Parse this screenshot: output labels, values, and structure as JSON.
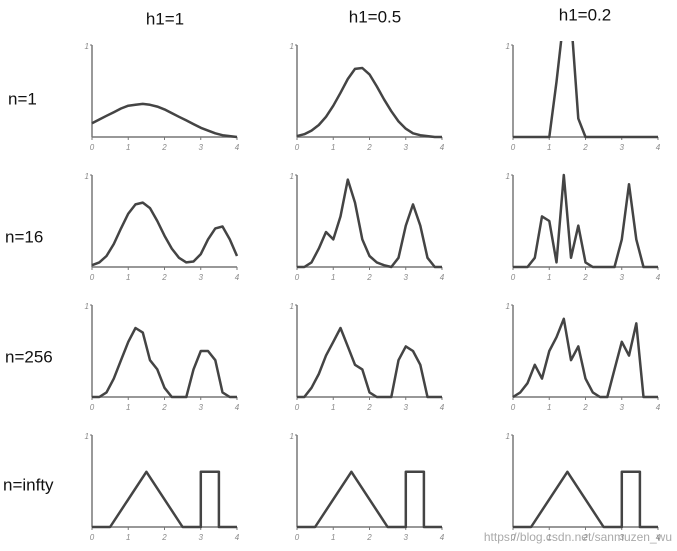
{
  "column_titles": [
    "h1=1",
    "h1=0.5",
    "h1=0.2"
  ],
  "row_labels": [
    "n=1",
    "n=16",
    "n=256",
    "n=infty"
  ],
  "watermark": "https://blog.csdn.net/sanmuzen_wu",
  "chart_data": [
    {
      "type": "line",
      "color": "#444444",
      "xlim": [
        0,
        4
      ],
      "xticks": [
        0,
        1,
        2,
        3,
        4
      ],
      "ylim": [
        0,
        1
      ],
      "yticks": [
        1
      ],
      "x": [
        0,
        0.2,
        0.4,
        0.6,
        0.8,
        1,
        1.2,
        1.4,
        1.6,
        1.8,
        2,
        2.2,
        2.4,
        2.6,
        2.8,
        3,
        3.2,
        3.4,
        3.6,
        3.8,
        4
      ],
      "values": [
        0.15,
        0.19,
        0.23,
        0.27,
        0.31,
        0.34,
        0.35,
        0.36,
        0.35,
        0.33,
        0.3,
        0.26,
        0.22,
        0.18,
        0.14,
        0.1,
        0.07,
        0.04,
        0.02,
        0.01,
        0
      ]
    },
    {
      "type": "line",
      "color": "#444444",
      "xlim": [
        0,
        4
      ],
      "xticks": [
        0,
        1,
        2,
        3,
        4
      ],
      "ylim": [
        0,
        1
      ],
      "yticks": [
        1
      ],
      "x": [
        0,
        0.2,
        0.4,
        0.6,
        0.8,
        1,
        1.2,
        1.4,
        1.6,
        1.8,
        2,
        2.2,
        2.4,
        2.6,
        2.8,
        3,
        3.2,
        3.4,
        3.6,
        3.8,
        4
      ],
      "values": [
        0.01,
        0.03,
        0.07,
        0.13,
        0.22,
        0.34,
        0.48,
        0.63,
        0.74,
        0.75,
        0.68,
        0.55,
        0.41,
        0.28,
        0.17,
        0.09,
        0.04,
        0.02,
        0.01,
        0,
        0
      ]
    },
    {
      "type": "line",
      "color": "#444444",
      "xlim": [
        0,
        4
      ],
      "xticks": [
        0,
        1,
        2,
        3,
        4
      ],
      "ylim": [
        0,
        1
      ],
      "yticks": [
        1
      ],
      "x": [
        0,
        0.2,
        0.4,
        0.6,
        0.8,
        1,
        1.2,
        1.4,
        1.6,
        1.8,
        2,
        2.2,
        2.4,
        2.6,
        2.8,
        3,
        3.2,
        3.4,
        3.6,
        3.8,
        4
      ],
      "values": [
        0,
        0,
        0,
        0,
        0,
        0,
        0.6,
        1.3,
        1.3,
        0.2,
        0,
        0,
        0,
        0,
        0,
        0,
        0,
        0,
        0,
        0,
        0
      ]
    },
    {
      "type": "line",
      "color": "#444444",
      "xlim": [
        0,
        4
      ],
      "xticks": [
        0,
        1,
        2,
        3,
        4
      ],
      "ylim": [
        0,
        1
      ],
      "yticks": [
        1
      ],
      "x": [
        0,
        0.2,
        0.4,
        0.6,
        0.8,
        1,
        1.2,
        1.4,
        1.6,
        1.8,
        2,
        2.2,
        2.4,
        2.6,
        2.8,
        3,
        3.2,
        3.4,
        3.6,
        3.8,
        4
      ],
      "values": [
        0.02,
        0.05,
        0.12,
        0.25,
        0.42,
        0.58,
        0.68,
        0.7,
        0.64,
        0.5,
        0.34,
        0.2,
        0.1,
        0.05,
        0.06,
        0.14,
        0.3,
        0.42,
        0.44,
        0.3,
        0.12
      ]
    },
    {
      "type": "line",
      "color": "#444444",
      "xlim": [
        0,
        4
      ],
      "xticks": [
        0,
        1,
        2,
        3,
        4
      ],
      "ylim": [
        0,
        1
      ],
      "yticks": [
        1
      ],
      "x": [
        0,
        0.2,
        0.4,
        0.6,
        0.8,
        1,
        1.2,
        1.4,
        1.6,
        1.8,
        2,
        2.2,
        2.4,
        2.6,
        2.8,
        3,
        3.2,
        3.4,
        3.6,
        3.8,
        4
      ],
      "values": [
        0,
        0,
        0.05,
        0.2,
        0.38,
        0.3,
        0.55,
        0.95,
        0.7,
        0.3,
        0.12,
        0.05,
        0.02,
        0,
        0.1,
        0.45,
        0.68,
        0.45,
        0.1,
        0,
        0
      ]
    },
    {
      "type": "line",
      "color": "#444444",
      "xlim": [
        0,
        4
      ],
      "xticks": [
        0,
        1,
        2,
        3,
        4
      ],
      "ylim": [
        0,
        1
      ],
      "yticks": [
        1
      ],
      "x": [
        0,
        0.2,
        0.4,
        0.6,
        0.8,
        1,
        1.2,
        1.4,
        1.6,
        1.8,
        2,
        2.2,
        2.4,
        2.6,
        2.8,
        3,
        3.2,
        3.4,
        3.6,
        3.8,
        4
      ],
      "values": [
        0,
        0,
        0,
        0.1,
        0.55,
        0.5,
        0.05,
        1.0,
        0.1,
        0.45,
        0.05,
        0,
        0,
        0,
        0,
        0.3,
        0.9,
        0.3,
        0,
        0,
        0
      ]
    },
    {
      "type": "line",
      "color": "#444444",
      "xlim": [
        0,
        4
      ],
      "xticks": [
        0,
        1,
        2,
        3,
        4
      ],
      "ylim": [
        0,
        1
      ],
      "yticks": [
        1
      ],
      "x": [
        0,
        0.2,
        0.4,
        0.6,
        0.8,
        1,
        1.2,
        1.4,
        1.6,
        1.8,
        2,
        2.2,
        2.4,
        2.6,
        2.8,
        3,
        3.2,
        3.4,
        3.6,
        3.8,
        4
      ],
      "values": [
        0,
        0,
        0.05,
        0.2,
        0.4,
        0.6,
        0.75,
        0.7,
        0.4,
        0.3,
        0.1,
        0,
        0,
        0,
        0.3,
        0.5,
        0.5,
        0.4,
        0.05,
        0,
        0
      ]
    },
    {
      "type": "line",
      "color": "#444444",
      "xlim": [
        0,
        4
      ],
      "xticks": [
        0,
        1,
        2,
        3,
        4
      ],
      "ylim": [
        0,
        1
      ],
      "yticks": [
        1
      ],
      "x": [
        0,
        0.2,
        0.4,
        0.6,
        0.8,
        1,
        1.2,
        1.4,
        1.6,
        1.8,
        2,
        2.2,
        2.4,
        2.6,
        2.8,
        3,
        3.2,
        3.4,
        3.6,
        3.8,
        4
      ],
      "values": [
        0,
        0,
        0.1,
        0.25,
        0.45,
        0.6,
        0.75,
        0.55,
        0.35,
        0.3,
        0.05,
        0,
        0,
        0,
        0.4,
        0.55,
        0.5,
        0.35,
        0,
        0,
        0
      ]
    },
    {
      "type": "line",
      "color": "#444444",
      "xlim": [
        0,
        4
      ],
      "xticks": [
        0,
        1,
        2,
        3,
        4
      ],
      "ylim": [
        0,
        1
      ],
      "yticks": [
        1
      ],
      "x": [
        0,
        0.2,
        0.4,
        0.6,
        0.8,
        1,
        1.2,
        1.4,
        1.6,
        1.8,
        2,
        2.2,
        2.4,
        2.6,
        2.8,
        3,
        3.2,
        3.4,
        3.6,
        3.8,
        4
      ],
      "values": [
        0,
        0.05,
        0.15,
        0.35,
        0.2,
        0.5,
        0.65,
        0.85,
        0.4,
        0.55,
        0.2,
        0.05,
        0,
        0,
        0.3,
        0.6,
        0.45,
        0.8,
        0,
        0,
        0
      ]
    },
    {
      "type": "line",
      "color": "#444444",
      "xlim": [
        0,
        4
      ],
      "xticks": [
        0,
        1,
        2,
        3,
        4
      ],
      "ylim": [
        0,
        1
      ],
      "yticks": [
        1
      ],
      "x": [
        0,
        0.5,
        1.5,
        2.5,
        3,
        3,
        3.5,
        3.5,
        4
      ],
      "values": [
        0,
        0,
        0.6,
        0,
        0,
        0.6,
        0.6,
        0,
        0
      ]
    },
    {
      "type": "line",
      "color": "#444444",
      "xlim": [
        0,
        4
      ],
      "xticks": [
        0,
        1,
        2,
        3,
        4
      ],
      "ylim": [
        0,
        1
      ],
      "yticks": [
        1
      ],
      "x": [
        0,
        0.5,
        1.5,
        2.5,
        3,
        3,
        3.5,
        3.5,
        4
      ],
      "values": [
        0,
        0,
        0.6,
        0,
        0,
        0.6,
        0.6,
        0,
        0
      ]
    },
    {
      "type": "line",
      "color": "#444444",
      "xlim": [
        0,
        4
      ],
      "xticks": [
        0,
        1,
        2,
        3,
        4
      ],
      "ylim": [
        0,
        1
      ],
      "yticks": [
        1
      ],
      "x": [
        0,
        0.5,
        1.5,
        2.5,
        3,
        3,
        3.5,
        3.5,
        4
      ],
      "values": [
        0,
        0,
        0.6,
        0,
        0,
        0.6,
        0.6,
        0,
        0
      ]
    }
  ]
}
